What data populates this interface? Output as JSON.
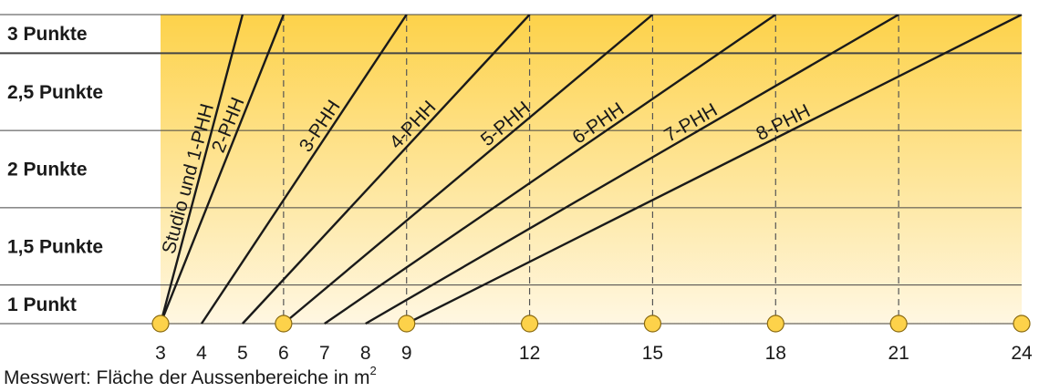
{
  "chart_data": {
    "type": "line",
    "xlabel": "Messwert: Fläche der Aussenbereiche in m",
    "xlabel_superscript": "2",
    "x_ticks": [
      3,
      4,
      5,
      6,
      7,
      8,
      9,
      12,
      15,
      18,
      21,
      24
    ],
    "marker_ticks": [
      3,
      6,
      9,
      12,
      15,
      18,
      21,
      24
    ],
    "dashed_gridlines_x": [
      6,
      9,
      12,
      15,
      18,
      21
    ],
    "xlim": [
      3,
      24
    ],
    "score_bands": [
      {
        "label": "1 Punkt",
        "range": [
          1,
          1.25
        ]
      },
      {
        "label": "1,5 Punkte",
        "range": [
          1.25,
          1.75
        ]
      },
      {
        "label": "2 Punkte",
        "range": [
          1.75,
          2.25
        ]
      },
      {
        "label": "2,5 Punkte",
        "range": [
          2.25,
          2.75
        ]
      },
      {
        "label": "3 Punkte",
        "range": [
          2.75,
          3
        ]
      }
    ],
    "ylim": [
      1,
      3
    ],
    "series": [
      {
        "name": "Studio und 1-PHH",
        "x": [
          3,
          5.0
        ],
        "y": [
          1,
          3
        ]
      },
      {
        "name": "2-PHH",
        "x": [
          3,
          6.0
        ],
        "y": [
          1,
          3
        ]
      },
      {
        "name": "3-PHH",
        "x": [
          4,
          9.0
        ],
        "y": [
          1,
          3
        ]
      },
      {
        "name": "4-PHH",
        "x": [
          5,
          12.0
        ],
        "y": [
          1,
          3
        ]
      },
      {
        "name": "5-PHH",
        "x": [
          6,
          15.0
        ],
        "y": [
          1,
          3
        ]
      },
      {
        "name": "6-PHH",
        "x": [
          7,
          18.0
        ],
        "y": [
          1,
          3
        ]
      },
      {
        "name": "7-PHH",
        "x": [
          8,
          21.0
        ],
        "y": [
          1,
          3
        ]
      },
      {
        "name": "8-PHH",
        "x": [
          9,
          24.0
        ],
        "y": [
          1,
          3
        ]
      }
    ],
    "colors": {
      "gradient_top": "#fdd24a",
      "gradient_bottom": "#fff7e2",
      "marker_fill": "#fdd24a",
      "marker_stroke": "#8a6a10",
      "line": "#1a1a1a",
      "grid": "#444444"
    }
  }
}
